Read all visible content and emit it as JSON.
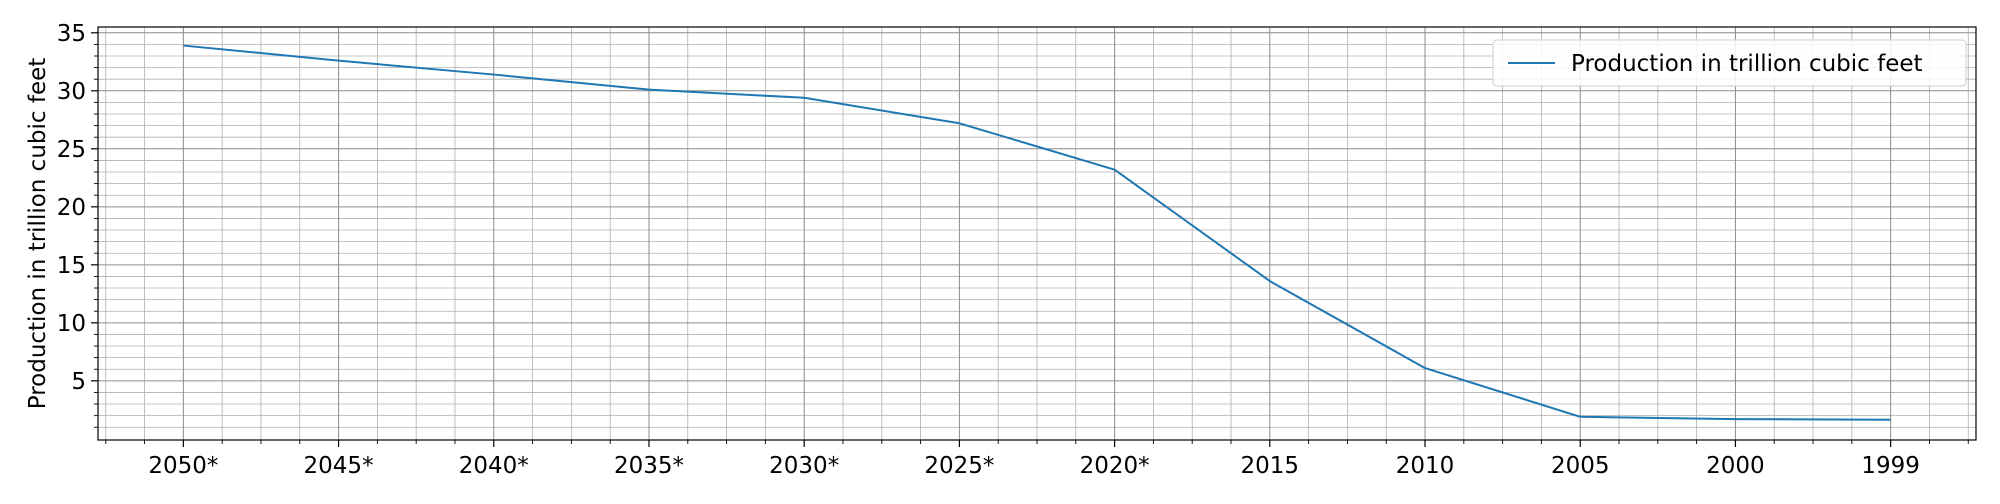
{
  "chart_data": {
    "type": "line",
    "title": "",
    "xlabel": "",
    "ylabel": "Production in trillion cubic feet",
    "categories": [
      "2050*",
      "2045*",
      "2040*",
      "2035*",
      "2030*",
      "2025*",
      "2020*",
      "2015",
      "2010",
      "2005",
      "2000",
      "1999"
    ],
    "series": [
      {
        "name": "Production in trillion cubic feet",
        "color": "#1f77b4",
        "values": [
          33.9,
          32.6,
          31.4,
          30.1,
          29.4,
          27.2,
          23.2,
          13.6,
          6.1,
          1.9,
          1.7,
          1.65
        ]
      }
    ],
    "yticks": [
      5,
      10,
      15,
      20,
      25,
      30,
      35
    ],
    "ylim": [
      -0.1,
      35.5
    ],
    "grid": true,
    "legend": "top-right"
  }
}
